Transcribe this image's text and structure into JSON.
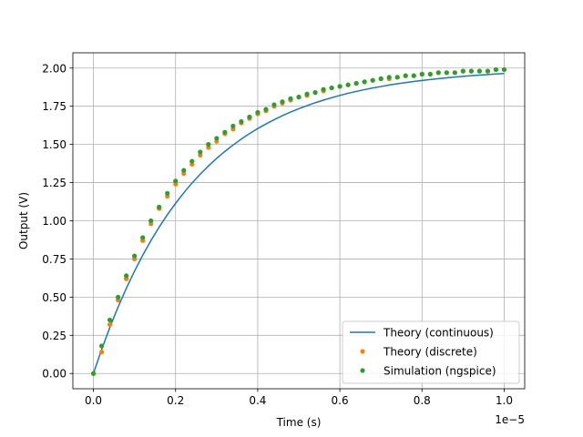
{
  "chart_data": {
    "type": "line",
    "title": "",
    "xlabel": "Time (s)",
    "ylabel": "Output (V)",
    "x_offset_text": "1e−5",
    "xlim": [
      -0.05,
      1.05
    ],
    "ylim": [
      -0.1,
      2.1
    ],
    "grid": true,
    "legend_position": "lower right",
    "x_ticks": [
      0.0,
      0.2,
      0.4,
      0.6,
      0.8,
      1.0
    ],
    "x_tick_labels": [
      "0.0",
      "0.2",
      "0.4",
      "0.6",
      "0.8",
      "1.0"
    ],
    "y_ticks": [
      0.0,
      0.25,
      0.5,
      0.75,
      1.0,
      1.25,
      1.5,
      1.75,
      2.0
    ],
    "y_tick_labels": [
      "0.00",
      "0.25",
      "0.50",
      "0.75",
      "1.00",
      "1.25",
      "1.50",
      "1.75",
      "2.00"
    ],
    "series": [
      {
        "name": "Theory (continuous)",
        "style": "line",
        "color": "#1f77b4",
        "x": [
          0.0,
          0.02,
          0.04,
          0.06,
          0.08,
          0.1,
          0.12,
          0.14,
          0.16,
          0.18,
          0.2,
          0.22,
          0.24,
          0.26,
          0.28,
          0.3,
          0.32,
          0.34,
          0.36,
          0.38,
          0.4,
          0.42,
          0.44,
          0.46,
          0.48,
          0.5,
          0.52,
          0.54,
          0.56,
          0.58,
          0.6,
          0.62,
          0.64,
          0.66,
          0.68,
          0.7,
          0.72,
          0.74,
          0.76,
          0.78,
          0.8,
          0.82,
          0.84,
          0.86,
          0.88,
          0.9,
          0.92,
          0.94,
          0.96,
          0.98,
          1.0
        ],
        "y": [
          0.0,
          0.157,
          0.302,
          0.435,
          0.557,
          0.67,
          0.774,
          0.87,
          0.958,
          1.04,
          1.114,
          1.183,
          1.247,
          1.305,
          1.359,
          1.409,
          1.454,
          1.496,
          1.535,
          1.571,
          1.604,
          1.634,
          1.662,
          1.688,
          1.712,
          1.734,
          1.754,
          1.773,
          1.79,
          1.806,
          1.821,
          1.835,
          1.847,
          1.859,
          1.87,
          1.879,
          1.889,
          1.897,
          1.905,
          1.912,
          1.919,
          1.925,
          1.931,
          1.936,
          1.941,
          1.946,
          1.95,
          1.954,
          1.958,
          1.961,
          1.964
        ]
      },
      {
        "name": "Theory (discrete)",
        "style": "markers",
        "color": "#ff7f0e",
        "x": [
          0.0,
          0.02,
          0.04,
          0.06,
          0.08,
          0.1,
          0.12,
          0.14,
          0.16,
          0.18,
          0.2,
          0.22,
          0.24,
          0.26,
          0.28,
          0.3,
          0.32,
          0.34,
          0.36,
          0.38,
          0.4,
          0.42,
          0.44,
          0.46,
          0.48,
          0.5,
          0.52,
          0.54,
          0.56,
          0.58,
          0.6,
          0.62,
          0.64,
          0.66,
          0.68,
          0.7,
          0.72,
          0.74,
          0.76,
          0.78,
          0.8,
          0.82,
          0.84,
          0.86,
          0.88,
          0.9,
          0.92,
          0.94,
          0.96,
          0.98,
          1.0
        ],
        "y": [
          0.0,
          0.14,
          0.32,
          0.48,
          0.62,
          0.75,
          0.87,
          0.98,
          1.08,
          1.16,
          1.24,
          1.31,
          1.37,
          1.43,
          1.48,
          1.52,
          1.57,
          1.6,
          1.64,
          1.67,
          1.7,
          1.72,
          1.75,
          1.77,
          1.79,
          1.81,
          1.82,
          1.84,
          1.85,
          1.87,
          1.88,
          1.89,
          1.9,
          1.91,
          1.92,
          1.93,
          1.93,
          1.94,
          1.95,
          1.95,
          1.96,
          1.96,
          1.97,
          1.97,
          1.97,
          1.98,
          1.98,
          1.98,
          1.98,
          1.99,
          1.99
        ]
      },
      {
        "name": "Simulation (ngspice)",
        "style": "markers",
        "color": "#2ca02c",
        "x": [
          0.0,
          0.02,
          0.04,
          0.06,
          0.08,
          0.1,
          0.12,
          0.14,
          0.16,
          0.18,
          0.2,
          0.22,
          0.24,
          0.26,
          0.28,
          0.3,
          0.32,
          0.34,
          0.36,
          0.38,
          0.4,
          0.42,
          0.44,
          0.46,
          0.48,
          0.5,
          0.52,
          0.54,
          0.56,
          0.58,
          0.6,
          0.62,
          0.64,
          0.66,
          0.68,
          0.7,
          0.72,
          0.74,
          0.76,
          0.78,
          0.8,
          0.82,
          0.84,
          0.86,
          0.88,
          0.9,
          0.92,
          0.94,
          0.96,
          0.98,
          1.0
        ],
        "y": [
          0.0,
          0.18,
          0.35,
          0.5,
          0.64,
          0.77,
          0.89,
          1.0,
          1.09,
          1.18,
          1.26,
          1.33,
          1.39,
          1.45,
          1.5,
          1.54,
          1.58,
          1.62,
          1.65,
          1.68,
          1.71,
          1.73,
          1.76,
          1.78,
          1.8,
          1.81,
          1.83,
          1.84,
          1.86,
          1.87,
          1.88,
          1.89,
          1.9,
          1.91,
          1.92,
          1.93,
          1.94,
          1.94,
          1.95,
          1.95,
          1.96,
          1.96,
          1.97,
          1.97,
          1.97,
          1.98,
          1.98,
          1.98,
          1.98,
          1.99,
          1.99
        ]
      }
    ]
  }
}
